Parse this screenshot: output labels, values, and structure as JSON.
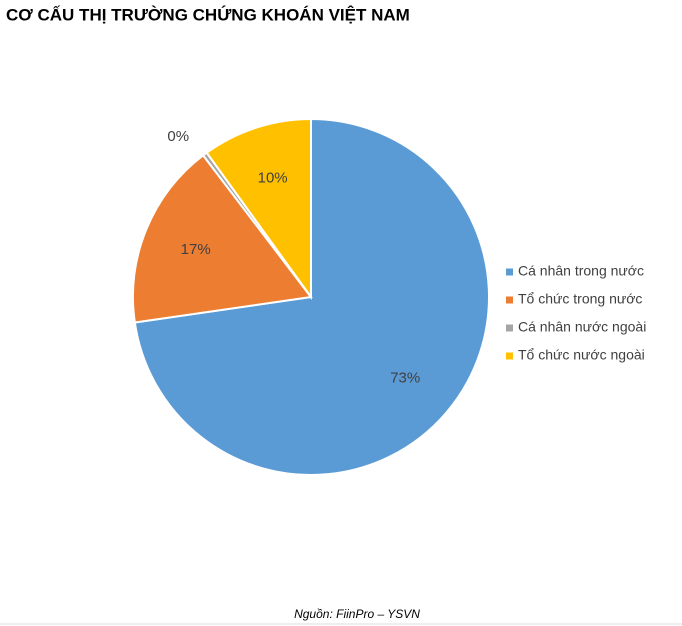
{
  "chart_data": {
    "type": "pie",
    "title": "CƠ CẤU THỊ TRƯỜNG CHỨNG KHOÁN VIỆT NAM",
    "categories": [
      "Cá nhân trong nước",
      "Tổ chức trong nước",
      "Cá nhân nước ngoài",
      "Tổ chức nước ngoài"
    ],
    "values": [
      73,
      17,
      0.4,
      10
    ],
    "value_labels": [
      "73%",
      "17%",
      "0%",
      "10%"
    ],
    "colors": [
      "#5b9bd5",
      "#ed7d31",
      "#a5a5a5",
      "#ffc000"
    ],
    "legend": "right",
    "source": "Nguồn: FiinPro – YSVN"
  }
}
